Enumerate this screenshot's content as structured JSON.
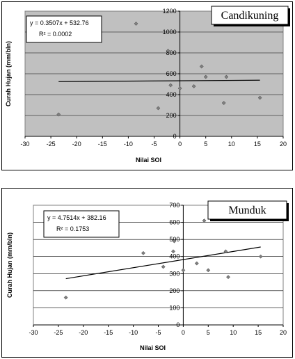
{
  "chart_data": [
    {
      "type": "scatter",
      "title": "Candikuning",
      "xlabel": "Nilai SOI",
      "ylabel": "Curah Hujan (mm/bln)",
      "xlim": [
        -30,
        20
      ],
      "ylim": [
        0,
        1200
      ],
      "xticks": [
        -30,
        -25,
        -20,
        -15,
        -10,
        -5,
        0,
        5,
        10,
        15,
        20
      ],
      "yticks": [
        0,
        200,
        400,
        600,
        800,
        1000,
        1200
      ],
      "grid": "horizontal",
      "plot_background": "#c0c0c0",
      "point_color": "#808080",
      "equation": "y = 0.3507x + 532.76",
      "r_squared": "R² = 0.0002",
      "trendline": {
        "slope": 0.3507,
        "intercept": 532.76,
        "x_range": [
          -23.5,
          15.5
        ]
      },
      "points": [
        {
          "x": -23.5,
          "y": 210
        },
        {
          "x": -8.5,
          "y": 1080
        },
        {
          "x": -4.2,
          "y": 270
        },
        {
          "x": -2.3,
          "y": 820
        },
        {
          "x": -1.8,
          "y": 490
        },
        {
          "x": 0.0,
          "y": 460
        },
        {
          "x": 2.7,
          "y": 480
        },
        {
          "x": 4.2,
          "y": 670
        },
        {
          "x": 5.0,
          "y": 570
        },
        {
          "x": 8.5,
          "y": 320
        },
        {
          "x": 9.0,
          "y": 570
        },
        {
          "x": 15.5,
          "y": 370
        }
      ]
    },
    {
      "type": "scatter",
      "title": "Munduk",
      "xlabel": "Nilai SOI",
      "ylabel": "Curah Hujan (mm/bln)",
      "xlim": [
        -30,
        20
      ],
      "ylim": [
        0,
        700
      ],
      "xticks": [
        -30,
        -25,
        -20,
        -15,
        -10,
        -5,
        0,
        5,
        10,
        15,
        20
      ],
      "yticks": [
        0,
        100,
        200,
        300,
        400,
        500,
        600,
        700
      ],
      "grid": "horizontal",
      "plot_background": "#ffffff",
      "point_color": "#808080",
      "equation": "y = 4.7514x + 382.16",
      "r_squared": "R² = 0.1753",
      "trendline": {
        "slope": 4.7514,
        "intercept": 382.16,
        "x_range": [
          -23.5,
          15.5
        ]
      },
      "points": [
        {
          "x": -23.5,
          "y": 160
        },
        {
          "x": -8.0,
          "y": 420
        },
        {
          "x": -4.0,
          "y": 340
        },
        {
          "x": -2.0,
          "y": 430
        },
        {
          "x": -1.8,
          "y": 490
        },
        {
          "x": 0.0,
          "y": 320
        },
        {
          "x": 2.7,
          "y": 360
        },
        {
          "x": 4.2,
          "y": 610
        },
        {
          "x": 5.0,
          "y": 320
        },
        {
          "x": 8.5,
          "y": 430
        },
        {
          "x": 9.0,
          "y": 280
        },
        {
          "x": 15.5,
          "y": 400
        }
      ]
    }
  ]
}
